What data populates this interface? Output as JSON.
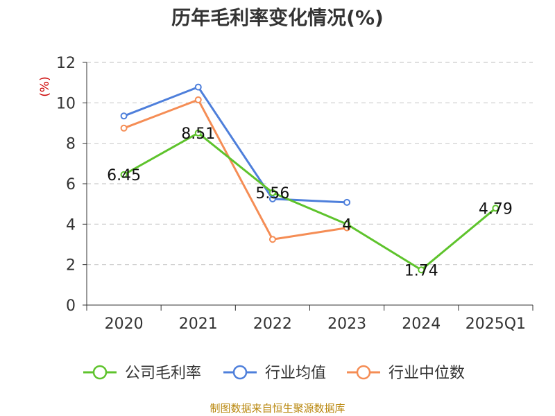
{
  "title": "历年毛利率变化情况(%)",
  "footer": "制图数据来自恒生聚源数据库",
  "colors": {
    "company": "#5ec32c",
    "industry_avg": "#4e7fdb",
    "industry_median": "#f58d55",
    "ylabel": "#cc0000",
    "grid": "#cccccc",
    "axis": "#333333",
    "footer": "#b8860b"
  },
  "chart_data": {
    "type": "line",
    "title": "历年毛利率变化情况(%)",
    "xlabel": "",
    "ylabel": "(%)",
    "categories": [
      "2020",
      "2021",
      "2022",
      "2023",
      "2024",
      "2025Q1"
    ],
    "ylim": [
      0,
      12
    ],
    "yticks": [
      0,
      2,
      4,
      6,
      8,
      10,
      12
    ],
    "grid": true,
    "legend_position": "bottom",
    "series": [
      {
        "name": "公司毛利率",
        "color_key": "company",
        "values": [
          6.45,
          8.51,
          5.56,
          4,
          1.74,
          4.79
        ],
        "data_labels": [
          "6.45",
          "8.51",
          "5.56",
          "4",
          "1.74",
          "4.79"
        ]
      },
      {
        "name": "行业均值",
        "color_key": "industry_avg",
        "values": [
          9.35,
          10.78,
          5.25,
          5.08,
          null,
          null
        ]
      },
      {
        "name": "行业中位数",
        "color_key": "industry_median",
        "values": [
          8.75,
          10.15,
          3.25,
          3.82,
          null,
          null
        ]
      }
    ]
  }
}
